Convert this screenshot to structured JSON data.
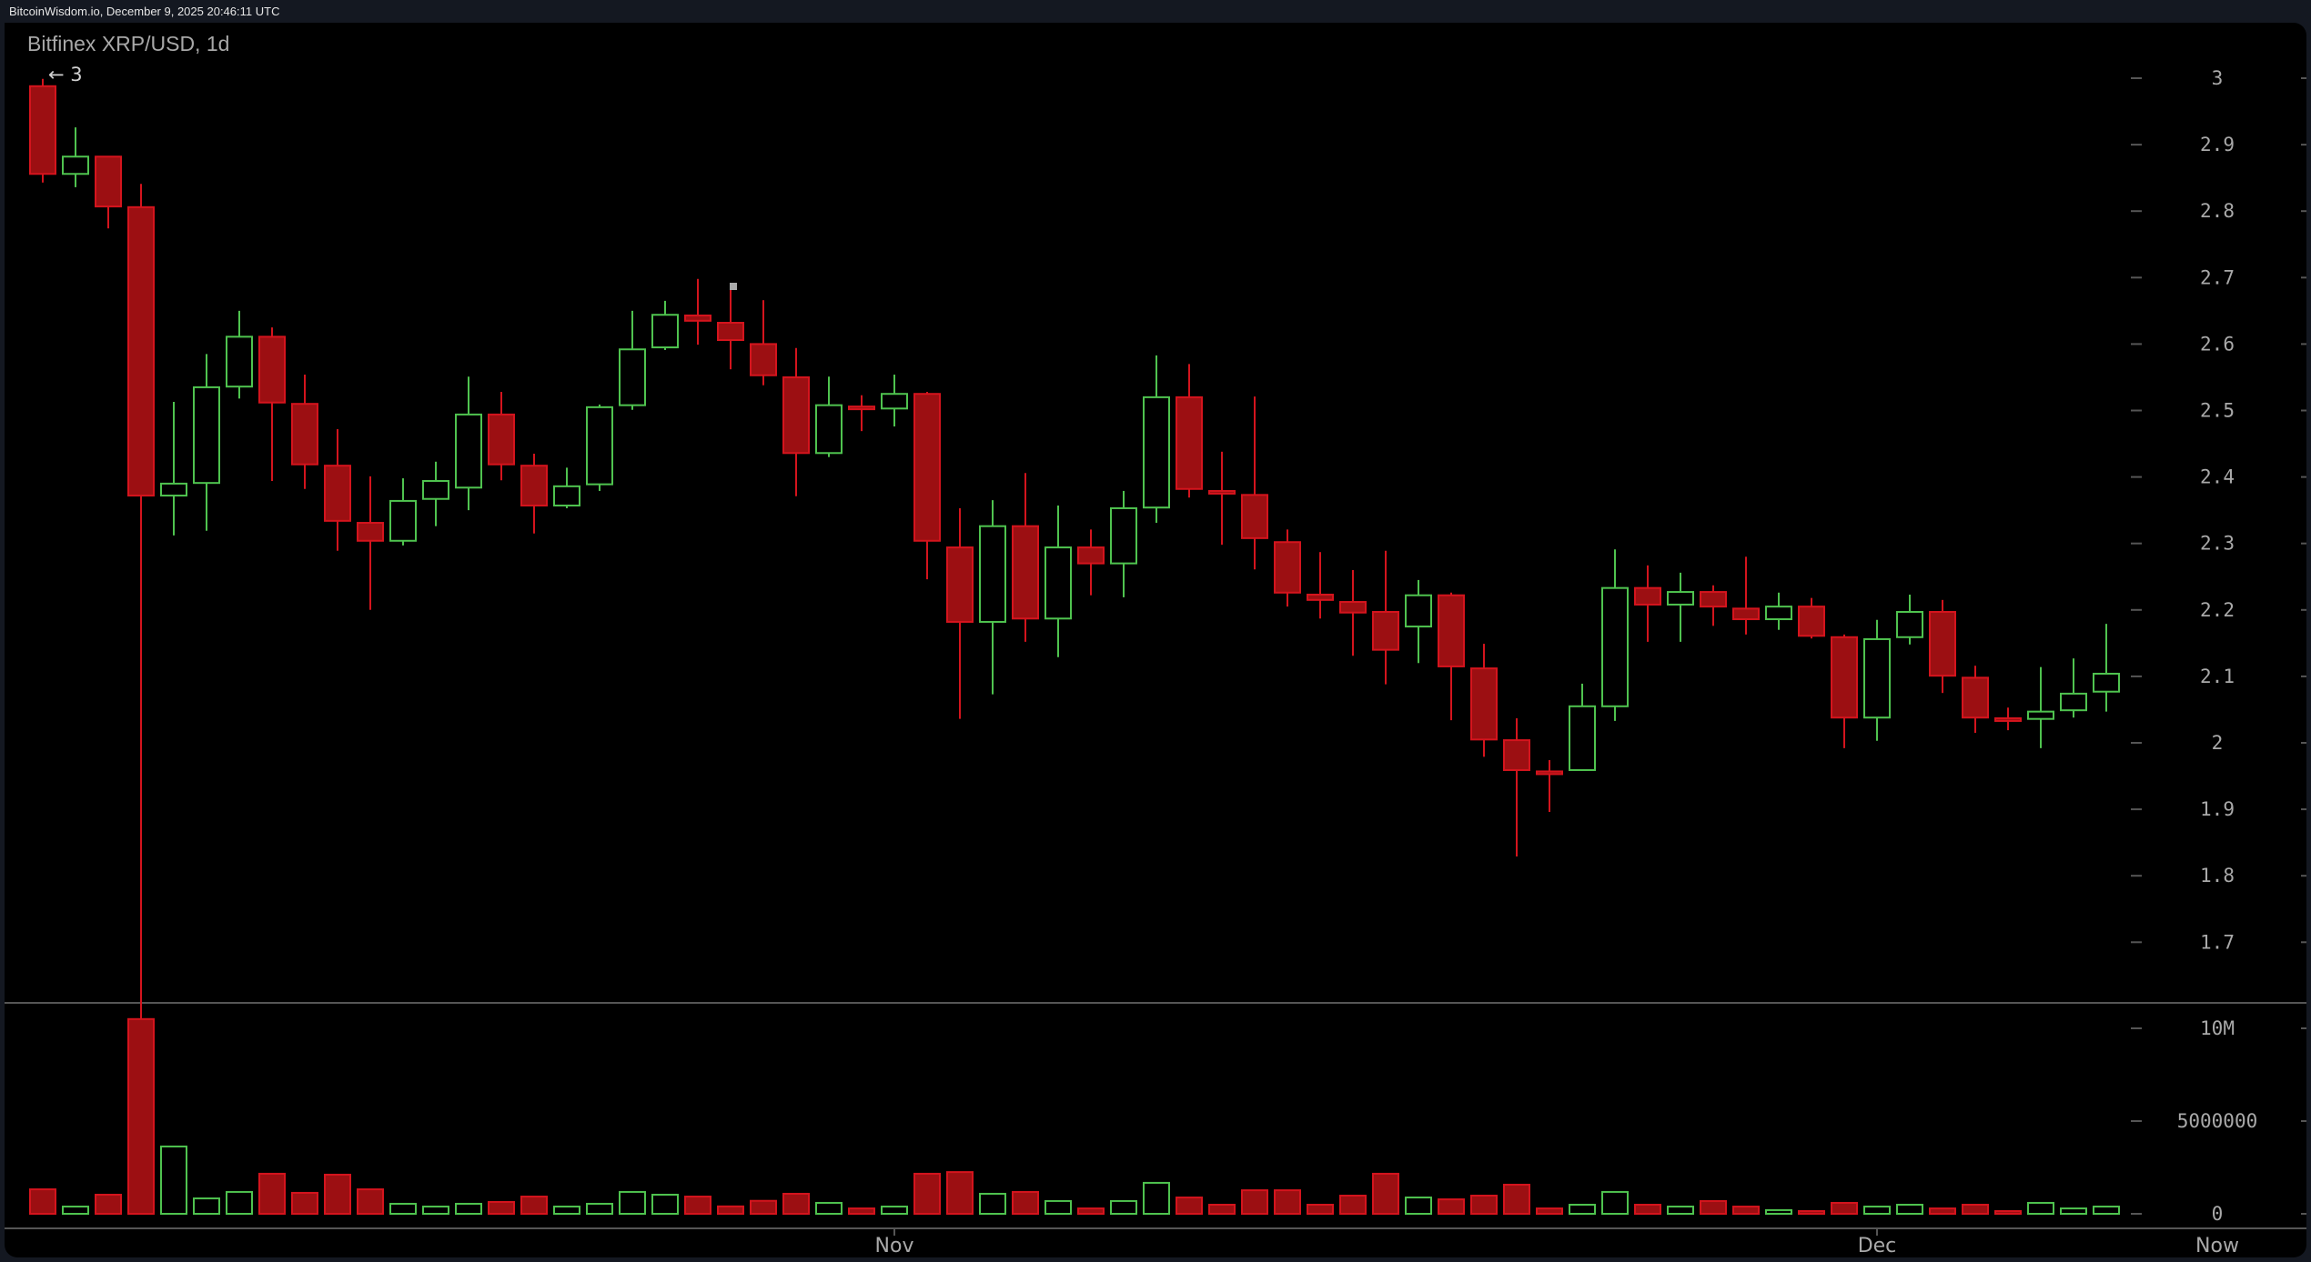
{
  "header": {
    "source_text": "BitcoinWisdom.io, December 9, 2025 20:46:11 UTC"
  },
  "chart": {
    "title": "Bitfinex XRP/USD, 1d",
    "max_marker": "← 3",
    "colors": {
      "up": "#4fc34f",
      "down": "#d4141d",
      "down_fill": "#9c0f12",
      "axis_text": "#a9a9a9",
      "divider": "#555555",
      "background": "#000000"
    }
  },
  "chart_data": {
    "type": "candlestick",
    "title": "Bitfinex XRP/USD, 1d",
    "xlabel": "",
    "ylabel": "",
    "price_axis": {
      "ticks": [
        "3",
        "2.9",
        "2.8",
        "2.7",
        "2.6",
        "2.5",
        "2.4",
        "2.3",
        "2.2",
        "2.1",
        "2",
        "1.9",
        "1.8",
        "1.7"
      ],
      "ylim": [
        1.6,
        3.05
      ]
    },
    "volume_axis": {
      "ticks": [
        "10M",
        "5000000",
        "0"
      ],
      "ylim": [
        0,
        11000000
      ]
    },
    "x_ticks": [
      {
        "label": "Nov",
        "index": 26
      },
      {
        "label": "Dec",
        "index": 56
      },
      {
        "label": "Now",
        "index": 64
      }
    ],
    "grid": false,
    "candles": [
      {
        "o": 2.988,
        "h": 2.999,
        "l": 2.843,
        "c": 2.856,
        "v": 1.32
      },
      {
        "o": 2.856,
        "h": 2.926,
        "l": 2.836,
        "c": 2.882,
        "v": 0.39
      },
      {
        "o": 2.882,
        "h": 2.882,
        "l": 2.774,
        "c": 2.807,
        "v": 1.03
      },
      {
        "o": 2.806,
        "h": 2.841,
        "l": 1.55,
        "c": 2.372,
        "v": 10.5
      },
      {
        "o": 2.372,
        "h": 2.513,
        "l": 2.312,
        "c": 2.39,
        "v": 3.63
      },
      {
        "o": 2.391,
        "h": 2.585,
        "l": 2.319,
        "c": 2.535,
        "v": 0.83
      },
      {
        "o": 2.536,
        "h": 2.65,
        "l": 2.518,
        "c": 2.611,
        "v": 1.18
      },
      {
        "o": 2.611,
        "h": 2.625,
        "l": 2.394,
        "c": 2.512,
        "v": 2.16
      },
      {
        "o": 2.51,
        "h": 2.554,
        "l": 2.382,
        "c": 2.419,
        "v": 1.13
      },
      {
        "o": 2.417,
        "h": 2.472,
        "l": 2.289,
        "c": 2.334,
        "v": 2.11
      },
      {
        "o": 2.331,
        "h": 2.401,
        "l": 2.2,
        "c": 2.304,
        "v": 1.32
      },
      {
        "o": 2.304,
        "h": 2.398,
        "l": 2.297,
        "c": 2.364,
        "v": 0.54
      },
      {
        "o": 2.367,
        "h": 2.423,
        "l": 2.326,
        "c": 2.394,
        "v": 0.39
      },
      {
        "o": 2.384,
        "h": 2.551,
        "l": 2.35,
        "c": 2.494,
        "v": 0.54
      },
      {
        "o": 2.494,
        "h": 2.528,
        "l": 2.395,
        "c": 2.419,
        "v": 0.64
      },
      {
        "o": 2.417,
        "h": 2.435,
        "l": 2.315,
        "c": 2.357,
        "v": 0.93
      },
      {
        "o": 2.357,
        "h": 2.414,
        "l": 2.353,
        "c": 2.386,
        "v": 0.39
      },
      {
        "o": 2.389,
        "h": 2.509,
        "l": 2.379,
        "c": 2.505,
        "v": 0.54
      },
      {
        "o": 2.508,
        "h": 2.65,
        "l": 2.501,
        "c": 2.592,
        "v": 1.18
      },
      {
        "o": 2.595,
        "h": 2.665,
        "l": 2.591,
        "c": 2.644,
        "v": 1.03
      },
      {
        "o": 2.643,
        "h": 2.698,
        "l": 2.599,
        "c": 2.635,
        "v": 0.93
      },
      {
        "o": 2.632,
        "h": 2.691,
        "l": 2.562,
        "c": 2.606,
        "v": 0.4
      },
      {
        "o": 2.6,
        "h": 2.666,
        "l": 2.538,
        "c": 2.553,
        "v": 0.7
      },
      {
        "o": 2.55,
        "h": 2.594,
        "l": 2.371,
        "c": 2.436,
        "v": 1.08
      },
      {
        "o": 2.436,
        "h": 2.551,
        "l": 2.43,
        "c": 2.508,
        "v": 0.59
      },
      {
        "o": 2.506,
        "h": 2.523,
        "l": 2.469,
        "c": 2.505,
        "v": 0.29
      },
      {
        "o": 2.503,
        "h": 2.554,
        "l": 2.476,
        "c": 2.525,
        "v": 0.39
      },
      {
        "o": 2.525,
        "h": 2.528,
        "l": 2.246,
        "c": 2.304,
        "v": 2.16
      },
      {
        "o": 2.294,
        "h": 2.353,
        "l": 2.036,
        "c": 2.182,
        "v": 2.25
      },
      {
        "o": 2.182,
        "h": 2.365,
        "l": 2.073,
        "c": 2.326,
        "v": 1.08
      },
      {
        "o": 2.326,
        "h": 2.406,
        "l": 2.152,
        "c": 2.187,
        "v": 1.18
      },
      {
        "o": 2.187,
        "h": 2.357,
        "l": 2.129,
        "c": 2.294,
        "v": 0.69
      },
      {
        "o": 2.294,
        "h": 2.321,
        "l": 2.222,
        "c": 2.27,
        "v": 0.29
      },
      {
        "o": 2.27,
        "h": 2.379,
        "l": 2.219,
        "c": 2.353,
        "v": 0.69
      },
      {
        "o": 2.354,
        "h": 2.583,
        "l": 2.331,
        "c": 2.52,
        "v": 1.67
      },
      {
        "o": 2.52,
        "h": 2.57,
        "l": 2.369,
        "c": 2.382,
        "v": 0.88
      },
      {
        "o": 2.379,
        "h": 2.438,
        "l": 2.298,
        "c": 2.377,
        "v": 0.49
      },
      {
        "o": 2.373,
        "h": 2.521,
        "l": 2.261,
        "c": 2.308,
        "v": 1.27
      },
      {
        "o": 2.302,
        "h": 2.321,
        "l": 2.205,
        "c": 2.226,
        "v": 1.27
      },
      {
        "o": 2.223,
        "h": 2.287,
        "l": 2.187,
        "c": 2.215,
        "v": 0.49
      },
      {
        "o": 2.212,
        "h": 2.26,
        "l": 2.131,
        "c": 2.196,
        "v": 0.98
      },
      {
        "o": 2.197,
        "h": 2.289,
        "l": 2.088,
        "c": 2.14,
        "v": 2.16
      },
      {
        "o": 2.175,
        "h": 2.245,
        "l": 2.12,
        "c": 2.222,
        "v": 0.88
      },
      {
        "o": 2.222,
        "h": 2.226,
        "l": 2.034,
        "c": 2.115,
        "v": 0.78
      },
      {
        "o": 2.112,
        "h": 2.149,
        "l": 1.979,
        "c": 2.005,
        "v": 0.98
      },
      {
        "o": 2.004,
        "h": 2.037,
        "l": 1.829,
        "c": 1.959,
        "v": 1.57
      },
      {
        "o": 1.957,
        "h": 1.974,
        "l": 1.896,
        "c": 1.955,
        "v": 0.29
      },
      {
        "o": 1.959,
        "h": 2.089,
        "l": 1.958,
        "c": 2.055,
        "v": 0.49
      },
      {
        "o": 2.055,
        "h": 2.291,
        "l": 2.033,
        "c": 2.233,
        "v": 1.18
      },
      {
        "o": 2.233,
        "h": 2.267,
        "l": 2.152,
        "c": 2.208,
        "v": 0.49
      },
      {
        "o": 2.208,
        "h": 2.256,
        "l": 2.152,
        "c": 2.227,
        "v": 0.39
      },
      {
        "o": 2.227,
        "h": 2.237,
        "l": 2.176,
        "c": 2.205,
        "v": 0.69
      },
      {
        "o": 2.202,
        "h": 2.28,
        "l": 2.163,
        "c": 2.186,
        "v": 0.39
      },
      {
        "o": 2.186,
        "h": 2.226,
        "l": 2.17,
        "c": 2.205,
        "v": 0.2
      },
      {
        "o": 2.205,
        "h": 2.218,
        "l": 2.157,
        "c": 2.161,
        "v": 0.1
      },
      {
        "o": 2.159,
        "h": 2.163,
        "l": 1.992,
        "c": 2.038,
        "v": 0.59
      },
      {
        "o": 2.038,
        "h": 2.185,
        "l": 2.003,
        "c": 2.156,
        "v": 0.39
      },
      {
        "o": 2.159,
        "h": 2.223,
        "l": 2.148,
        "c": 2.197,
        "v": 0.49
      },
      {
        "o": 2.197,
        "h": 2.215,
        "l": 2.075,
        "c": 2.101,
        "v": 0.29
      },
      {
        "o": 2.098,
        "h": 2.116,
        "l": 2.015,
        "c": 2.038,
        "v": 0.49
      },
      {
        "o": 2.037,
        "h": 2.053,
        "l": 2.019,
        "c": 2.035,
        "v": 0.1
      },
      {
        "o": 2.036,
        "h": 2.114,
        "l": 1.992,
        "c": 2.047,
        "v": 0.59
      },
      {
        "o": 2.049,
        "h": 2.127,
        "l": 2.038,
        "c": 2.074,
        "v": 0.29
      },
      {
        "o": 2.077,
        "h": 2.179,
        "l": 2.047,
        "c": 2.104,
        "v": 0.39
      }
    ],
    "volume_units": "millions"
  }
}
